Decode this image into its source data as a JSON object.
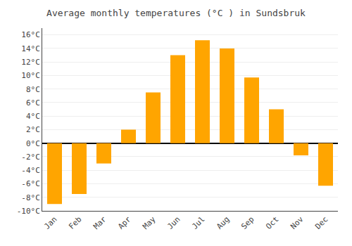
{
  "chart_data": {
    "type": "bar",
    "title": "Average monthly temperatures (°C ) in Sundsbruk",
    "categories": [
      "Jan",
      "Feb",
      "Mar",
      "Apr",
      "May",
      "Jun",
      "Jul",
      "Aug",
      "Sep",
      "Oct",
      "Nov",
      "Dec"
    ],
    "values": [
      -9.0,
      -7.5,
      -3.0,
      2.0,
      7.5,
      13.0,
      15.2,
      14.0,
      9.7,
      5.0,
      -1.8,
      -6.3
    ],
    "color": "#FFA500",
    "ylim": [
      -10,
      17
    ],
    "yticks": [
      {
        "value": -10,
        "label": "-10°C"
      },
      {
        "value": -8,
        "label": "-8°C"
      },
      {
        "value": -6,
        "label": "-6°C"
      },
      {
        "value": -4,
        "label": "-4°C"
      },
      {
        "value": -2,
        "label": "-2°C"
      },
      {
        "value": 0,
        "label": "0°C"
      },
      {
        "value": 2,
        "label": "2°C"
      },
      {
        "value": 4,
        "label": "4°C"
      },
      {
        "value": 6,
        "label": "6°C"
      },
      {
        "value": 8,
        "label": "8°C"
      },
      {
        "value": 10,
        "label": "10°C"
      },
      {
        "value": 12,
        "label": "12°C"
      },
      {
        "value": 14,
        "label": "14°C"
      },
      {
        "value": 16,
        "label": "16°C"
      }
    ],
    "grid": true
  }
}
